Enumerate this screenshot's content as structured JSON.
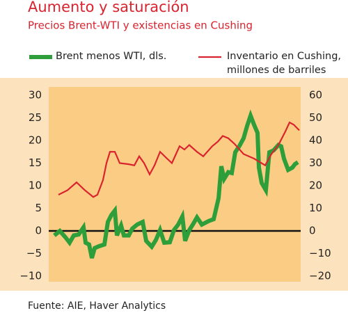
{
  "chart_data": {
    "type": "line",
    "title": "Aumento y saturación",
    "subtitle": "Precios Brent-WTI y existencias en Cushing",
    "source": "Fuente: AIE, Haver Analytics",
    "xlim": [
      0,
      362
    ],
    "ylim": [
      -10,
      30
    ],
    "yticks": [
      {
        "value": -10,
        "label": "−10"
      },
      {
        "value": -5,
        "label": "−5"
      },
      0,
      5,
      10,
      15,
      20,
      25,
      30
    ],
    "y2lim": [
      -20,
      60
    ],
    "y2ticks": [
      {
        "value": -20,
        "label": "−20"
      },
      {
        "value": -10,
        "label": "−10"
      },
      0,
      10,
      20,
      30,
      40,
      50,
      60
    ],
    "series": [
      {
        "name": "Brent menos WTI, dls.",
        "color": "#2e9e3a",
        "width": 6,
        "x": [
          8,
          16,
          24,
          30,
          36,
          43,
          50,
          53,
          58,
          62,
          66,
          72,
          80,
          85,
          90,
          95,
          98,
          104,
          108,
          115,
          120,
          127,
          135,
          140,
          148,
          154,
          160,
          166,
          174,
          180,
          186,
          192,
          196,
          202,
          207,
          213,
          220,
          230,
          237,
          244,
          248,
          252,
          258,
          263,
          268,
          274,
          280,
          285,
          290,
          295,
          300,
          302,
          306,
          312,
          317,
          323,
          330,
          334,
          338,
          344,
          350,
          354,
          358
        ],
        "values": [
          -1,
          0,
          -1.4,
          -2.6,
          -1,
          -0.8,
          0.8,
          -2.6,
          -3,
          -6,
          -3.8,
          -3.4,
          -3,
          2,
          3.5,
          4.5,
          -1,
          1.2,
          -1,
          -1,
          0.5,
          1.4,
          2,
          -2.2,
          -3.5,
          -2,
          0.2,
          -2.6,
          -2.5,
          0.2,
          1.4,
          3.2,
          -2.2,
          0.2,
          1.4,
          3,
          1.4,
          2.2,
          2.6,
          7.2,
          14.3,
          11.5,
          13,
          12.8,
          17.4,
          18.8,
          20.5,
          23.2,
          25.5,
          23.5,
          21.7,
          14,
          10.6,
          9,
          17.4,
          17.8,
          19,
          18.7,
          16,
          13.5,
          14,
          14.8,
          15.2
        ]
      },
      {
        "name": "Inventario en Cushing, millones de barriles",
        "color": "#d9232e",
        "width": 2.2,
        "axis": "y2",
        "x": [
          14,
          27,
          40,
          52,
          64,
          70,
          78,
          83,
          88,
          95,
          102,
          115,
          123,
          130,
          137,
          145,
          152,
          160,
          170,
          177,
          188,
          195,
          202,
          213,
          222,
          235,
          243,
          250,
          258,
          267,
          280,
          295,
          311,
          320,
          330,
          340,
          346,
          352,
          360
        ],
        "values": [
          16,
          18,
          21.5,
          18,
          15,
          16,
          22.5,
          30,
          35,
          35,
          30,
          29.5,
          29,
          33,
          30,
          25,
          29,
          35,
          32,
          30,
          37.5,
          36,
          38,
          35,
          33,
          37.5,
          39.5,
          42,
          41,
          38.5,
          34,
          32,
          29,
          34,
          38,
          44,
          48,
          47,
          44.5
        ]
      }
    ]
  }
}
